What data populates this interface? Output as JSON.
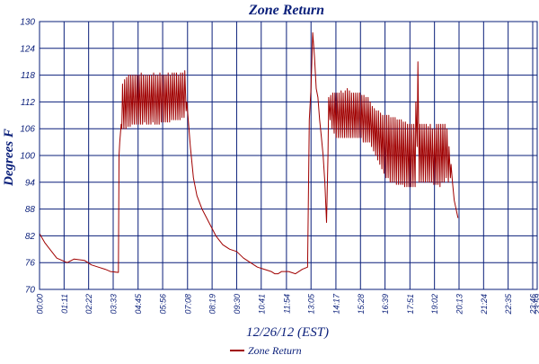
{
  "chart_data": {
    "type": "line",
    "title": "Zone Return",
    "xlabel": "12/26/12 (EST)",
    "ylabel": "Degrees F",
    "ylim": [
      70,
      130
    ],
    "yticks": [
      70,
      76,
      82,
      88,
      94,
      100,
      106,
      112,
      118,
      124,
      130
    ],
    "x_tick_labels": [
      "00:00",
      "01:11",
      "02:22",
      "03:33",
      "04:45",
      "05:56",
      "07:08",
      "08:19",
      "09:30",
      "10:41",
      "11:54",
      "13:05",
      "14:17",
      "15:28",
      "16:39",
      "17:51",
      "19:02",
      "20:13",
      "21:24",
      "22:35",
      "23:46",
      "23:59"
    ],
    "x_tick_minutes": [
      0,
      71,
      142,
      213,
      285,
      356,
      428,
      499,
      570,
      641,
      714,
      785,
      857,
      928,
      999,
      1071,
      1142,
      1213,
      1284,
      1355,
      1426,
      1439
    ],
    "xlim_minutes": [
      0,
      1439
    ],
    "grid": true,
    "legend_position": "bottom-center",
    "series": [
      {
        "name": "Zone Return",
        "color": "#a00000",
        "points": [
          [
            0,
            82.5
          ],
          [
            15,
            80.5
          ],
          [
            30,
            79
          ],
          [
            50,
            77
          ],
          [
            80,
            76
          ],
          [
            100,
            76.8
          ],
          [
            130,
            76.5
          ],
          [
            150,
            75.5
          ],
          [
            170,
            75
          ],
          [
            190,
            74.5
          ],
          [
            205,
            74
          ],
          [
            228,
            73.8
          ],
          [
            230,
            100
          ],
          [
            232,
            103
          ],
          [
            236,
            107
          ],
          [
            238,
            106
          ],
          [
            240,
            116
          ],
          [
            244,
            106
          ],
          [
            246,
            117
          ],
          [
            250,
            106
          ],
          [
            252,
            117.5
          ],
          [
            256,
            106.5
          ],
          [
            258,
            118
          ],
          [
            262,
            106.5
          ],
          [
            264,
            118
          ],
          [
            268,
            107
          ],
          [
            270,
            118
          ],
          [
            274,
            107
          ],
          [
            276,
            118
          ],
          [
            280,
            107
          ],
          [
            282,
            118
          ],
          [
            286,
            107
          ],
          [
            288,
            118
          ],
          [
            292,
            107
          ],
          [
            294,
            118.5
          ],
          [
            298,
            107
          ],
          [
            300,
            118
          ],
          [
            304,
            107.5
          ],
          [
            306,
            118
          ],
          [
            310,
            107
          ],
          [
            312,
            118
          ],
          [
            316,
            107
          ],
          [
            318,
            118
          ],
          [
            322,
            107
          ],
          [
            324,
            118
          ],
          [
            328,
            107.5
          ],
          [
            330,
            118.5
          ],
          [
            334,
            107
          ],
          [
            336,
            118
          ],
          [
            340,
            107
          ],
          [
            342,
            118
          ],
          [
            346,
            107
          ],
          [
            348,
            118.5
          ],
          [
            352,
            107.5
          ],
          [
            354,
            118
          ],
          [
            358,
            107.5
          ],
          [
            360,
            118
          ],
          [
            364,
            107.5
          ],
          [
            366,
            118
          ],
          [
            370,
            107.5
          ],
          [
            372,
            118.5
          ],
          [
            376,
            107.5
          ],
          [
            378,
            118
          ],
          [
            382,
            108
          ],
          [
            384,
            118.5
          ],
          [
            388,
            108
          ],
          [
            390,
            118.5
          ],
          [
            394,
            108
          ],
          [
            396,
            118.5
          ],
          [
            400,
            108
          ],
          [
            402,
            118
          ],
          [
            406,
            108
          ],
          [
            408,
            118.5
          ],
          [
            412,
            108.5
          ],
          [
            414,
            118.5
          ],
          [
            418,
            108.5
          ],
          [
            420,
            119
          ],
          [
            424,
            110
          ],
          [
            426,
            112
          ],
          [
            428,
            110
          ],
          [
            436,
            102
          ],
          [
            445,
            95
          ],
          [
            455,
            91
          ],
          [
            470,
            88
          ],
          [
            490,
            85
          ],
          [
            510,
            82
          ],
          [
            530,
            80
          ],
          [
            550,
            79
          ],
          [
            570,
            78.5
          ],
          [
            590,
            77
          ],
          [
            610,
            76
          ],
          [
            630,
            75
          ],
          [
            650,
            74.5
          ],
          [
            670,
            74
          ],
          [
            680,
            73.5
          ],
          [
            690,
            73.5
          ],
          [
            700,
            74
          ],
          [
            720,
            74
          ],
          [
            740,
            73.5
          ],
          [
            760,
            74.5
          ],
          [
            775,
            75
          ],
          [
            780,
            108
          ],
          [
            785,
            115
          ],
          [
            790,
            127.5
          ],
          [
            795,
            122
          ],
          [
            800,
            115
          ],
          [
            805,
            113
          ],
          [
            810,
            108
          ],
          [
            815,
            104
          ],
          [
            820,
            100
          ],
          [
            825,
            94
          ],
          [
            830,
            85
          ],
          [
            834,
            100
          ],
          [
            836,
            113
          ],
          [
            840,
            108
          ],
          [
            842,
            113.5
          ],
          [
            846,
            106
          ],
          [
            848,
            114
          ],
          [
            852,
            105
          ],
          [
            854,
            114
          ],
          [
            858,
            104
          ],
          [
            860,
            114
          ],
          [
            864,
            104
          ],
          [
            866,
            114
          ],
          [
            870,
            104
          ],
          [
            872,
            114.5
          ],
          [
            876,
            104
          ],
          [
            878,
            114
          ],
          [
            882,
            104
          ],
          [
            884,
            114.5
          ],
          [
            888,
            104
          ],
          [
            890,
            115
          ],
          [
            894,
            104
          ],
          [
            896,
            114.5
          ],
          [
            900,
            104
          ],
          [
            902,
            114
          ],
          [
            906,
            104
          ],
          [
            908,
            114
          ],
          [
            912,
            104
          ],
          [
            914,
            114
          ],
          [
            918,
            104
          ],
          [
            920,
            114
          ],
          [
            924,
            104
          ],
          [
            926,
            114
          ],
          [
            930,
            104
          ],
          [
            932,
            113.5
          ],
          [
            936,
            103
          ],
          [
            938,
            113.5
          ],
          [
            942,
            103
          ],
          [
            944,
            113
          ],
          [
            948,
            103
          ],
          [
            950,
            113
          ],
          [
            954,
            103
          ],
          [
            956,
            112
          ],
          [
            960,
            102
          ],
          [
            962,
            111
          ],
          [
            966,
            101
          ],
          [
            968,
            110.5
          ],
          [
            972,
            100
          ],
          [
            974,
            110
          ],
          [
            978,
            99
          ],
          [
            980,
            110
          ],
          [
            984,
            98
          ],
          [
            986,
            109.5
          ],
          [
            990,
            97
          ],
          [
            992,
            109
          ],
          [
            996,
            96
          ],
          [
            998,
            109
          ],
          [
            1002,
            95
          ],
          [
            1004,
            109
          ],
          [
            1008,
            95
          ],
          [
            1010,
            109
          ],
          [
            1014,
            94
          ],
          [
            1016,
            108.5
          ],
          [
            1020,
            94
          ],
          [
            1022,
            108.5
          ],
          [
            1026,
            94
          ],
          [
            1028,
            108.5
          ],
          [
            1032,
            93.5
          ],
          [
            1034,
            108
          ],
          [
            1038,
            93.5
          ],
          [
            1040,
            108
          ],
          [
            1044,
            93.5
          ],
          [
            1046,
            108
          ],
          [
            1050,
            93.5
          ],
          [
            1052,
            107.5
          ],
          [
            1056,
            93
          ],
          [
            1058,
            107.5
          ],
          [
            1062,
            93
          ],
          [
            1064,
            107
          ],
          [
            1068,
            93
          ],
          [
            1070,
            107
          ],
          [
            1074,
            93
          ],
          [
            1076,
            107
          ],
          [
            1080,
            93
          ],
          [
            1082,
            107
          ],
          [
            1086,
            93
          ],
          [
            1088,
            112
          ],
          [
            1092,
            102
          ],
          [
            1094,
            121
          ],
          [
            1098,
            94
          ],
          [
            1100,
            107
          ],
          [
            1104,
            94
          ],
          [
            1106,
            107
          ],
          [
            1110,
            94
          ],
          [
            1112,
            107
          ],
          [
            1116,
            94
          ],
          [
            1118,
            107
          ],
          [
            1122,
            94
          ],
          [
            1124,
            106.5
          ],
          [
            1128,
            94
          ],
          [
            1130,
            107
          ],
          [
            1134,
            94
          ],
          [
            1136,
            106
          ],
          [
            1140,
            93.5
          ],
          [
            1142,
            106
          ],
          [
            1146,
            93.5
          ],
          [
            1148,
            107
          ],
          [
            1152,
            93.5
          ],
          [
            1154,
            107
          ],
          [
            1158,
            93
          ],
          [
            1160,
            107
          ],
          [
            1164,
            94
          ],
          [
            1166,
            107
          ],
          [
            1170,
            94
          ],
          [
            1172,
            107
          ],
          [
            1176,
            95
          ],
          [
            1178,
            106
          ],
          [
            1182,
            94
          ],
          [
            1184,
            102
          ],
          [
            1188,
            95
          ],
          [
            1190,
            98
          ],
          [
            1194,
            94
          ],
          [
            1199,
            90
          ],
          [
            1210,
            86
          ]
        ]
      }
    ]
  }
}
